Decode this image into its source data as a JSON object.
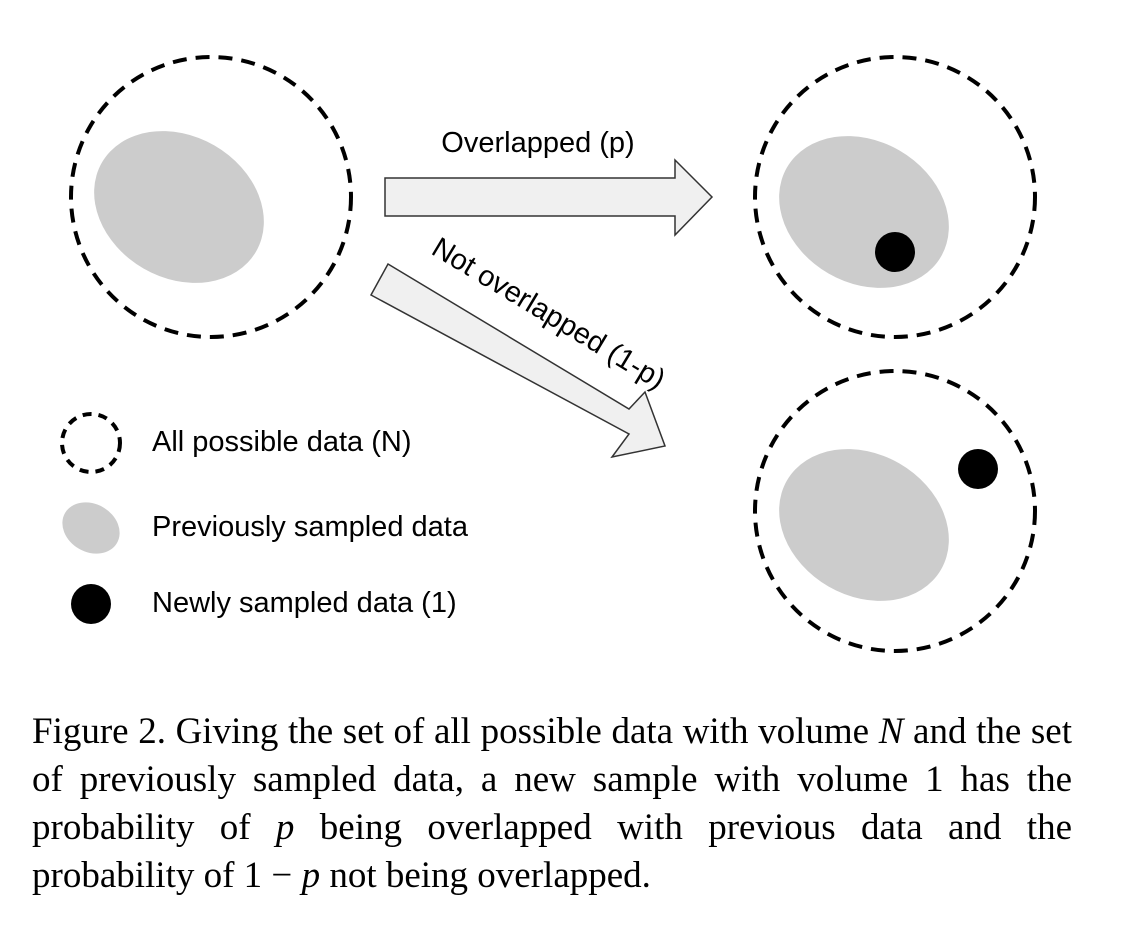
{
  "diagram": {
    "arrow_top_label": "Overlapped (p)",
    "arrow_bottom_label": "Not overlapped (1-p)",
    "colors": {
      "previous_data": "#cccccc",
      "new_data": "#000000",
      "arrow_fill": "#f0f0f0",
      "outline": "#000000"
    }
  },
  "legend": {
    "items": [
      {
        "icon": "dashed-circle-icon",
        "label": "All possible data (N)"
      },
      {
        "icon": "gray-ellipse-icon",
        "label": "Previously sampled data"
      },
      {
        "icon": "black-dot-icon",
        "label": "Newly sampled data (1)"
      }
    ]
  },
  "caption": {
    "prefix": "Figure 2. Giving the set of all possible data with volume ",
    "var_n": "N",
    "mid1": " and the set of previously sampled data, a new sample with volume 1 has the probability of ",
    "var_p1": "p",
    "mid2": " being overlapped with previous data and the probability of 1 − ",
    "var_p2": "p",
    "suffix": " not being overlapped."
  }
}
